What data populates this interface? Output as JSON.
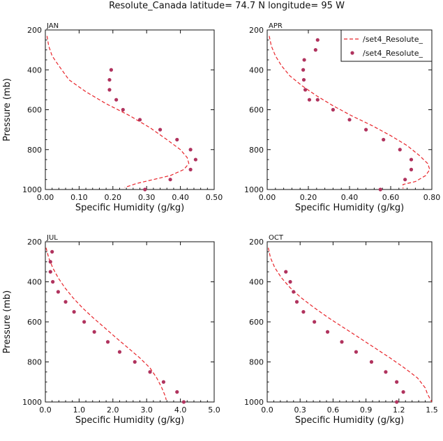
{
  "title": "Resolute_Canada  latitude= 74.7 N longitude= 95 W",
  "colors": {
    "model": "#e8242a",
    "obs": "#b0335e",
    "axis": "#111111"
  },
  "legend": {
    "model_label": "/set4_Resolute_",
    "obs_label": "/set4_Resolute_"
  },
  "chart_data": [
    {
      "type": "line",
      "panel": "JAN",
      "xlabel": "Specific Humidity (g/kg)",
      "ylabel": "Pressure (mb)",
      "xlim": [
        0,
        0.5
      ],
      "ylim": [
        1000,
        200
      ],
      "x_ticks": [
        "0.00",
        "0.10",
        "0.20",
        "0.30",
        "0.40",
        "0.50"
      ],
      "y_ticks": [
        "200",
        "400",
        "600",
        "800",
        "1000"
      ],
      "series": [
        {
          "name": "model",
          "style": "dashed-line",
          "points": [
            [
              0.005,
              230
            ],
            [
              0.01,
              280
            ],
            [
              0.02,
              330
            ],
            [
              0.04,
              380
            ],
            [
              0.07,
              450
            ],
            [
              0.12,
              510
            ],
            [
              0.18,
              570
            ],
            [
              0.25,
              630
            ],
            [
              0.31,
              690
            ],
            [
              0.36,
              750
            ],
            [
              0.4,
              800
            ],
            [
              0.42,
              840
            ],
            [
              0.425,
              870
            ],
            [
              0.41,
              900
            ],
            [
              0.37,
              930
            ],
            [
              0.32,
              950
            ],
            [
              0.27,
              970
            ],
            [
              0.235,
              990
            ]
          ]
        },
        {
          "name": "obs",
          "style": "dots",
          "points": [
            [
              0.195,
              400
            ],
            [
              0.19,
              450
            ],
            [
              0.19,
              500
            ],
            [
              0.21,
              550
            ],
            [
              0.23,
              600
            ],
            [
              0.28,
              650
            ],
            [
              0.34,
              700
            ],
            [
              0.39,
              750
            ],
            [
              0.43,
              800
            ],
            [
              0.445,
              850
            ],
            [
              0.43,
              900
            ],
            [
              0.37,
              950
            ],
            [
              0.295,
              1000
            ]
          ]
        }
      ]
    },
    {
      "type": "line",
      "panel": "APR",
      "xlabel": "Specific Humidity (g/kg)",
      "ylabel": "",
      "xlim": [
        0,
        0.8
      ],
      "ylim": [
        1000,
        200
      ],
      "x_ticks": [
        "0.00",
        "0.20",
        "0.40",
        "0.60",
        "0.80"
      ],
      "y_ticks": [
        "200",
        "400",
        "600",
        "800",
        "1000"
      ],
      "series": [
        {
          "name": "model",
          "style": "dashed-line",
          "points": [
            [
              0.01,
              230
            ],
            [
              0.02,
              280
            ],
            [
              0.04,
              330
            ],
            [
              0.07,
              380
            ],
            [
              0.11,
              430
            ],
            [
              0.17,
              480
            ],
            [
              0.24,
              530
            ],
            [
              0.32,
              580
            ],
            [
              0.41,
              630
            ],
            [
              0.51,
              680
            ],
            [
              0.6,
              730
            ],
            [
              0.68,
              780
            ],
            [
              0.74,
              830
            ],
            [
              0.78,
              870
            ],
            [
              0.79,
              900
            ],
            [
              0.77,
              930
            ],
            [
              0.72,
              960
            ],
            [
              0.66,
              975
            ],
            [
              0.66,
              995
            ]
          ]
        },
        {
          "name": "obs",
          "style": "dots",
          "points": [
            [
              0.245,
              250
            ],
            [
              0.235,
              300
            ],
            [
              0.18,
              350
            ],
            [
              0.175,
              400
            ],
            [
              0.178,
              450
            ],
            [
              0.185,
              500
            ],
            [
              0.205,
              550
            ],
            [
              0.245,
              550
            ],
            [
              0.32,
              600
            ],
            [
              0.4,
              650
            ],
            [
              0.48,
              700
            ],
            [
              0.565,
              750
            ],
            [
              0.645,
              800
            ],
            [
              0.7,
              850
            ],
            [
              0.7,
              900
            ],
            [
              0.67,
              950
            ],
            [
              0.55,
              1000
            ]
          ]
        }
      ]
    },
    {
      "type": "line",
      "panel": "JUL",
      "xlabel": "Specific Humidity (g/kg)",
      "ylabel": "Pressure (mb)",
      "xlim": [
        0,
        5
      ],
      "ylim": [
        1000,
        200
      ],
      "x_ticks": [
        "0.0",
        "1.0",
        "2.0",
        "3.0",
        "4.0",
        "5.0"
      ],
      "y_ticks": [
        "200",
        "400",
        "600",
        "800",
        "1000"
      ],
      "series": [
        {
          "name": "model",
          "style": "dashed-line",
          "points": [
            [
              0.02,
              230
            ],
            [
              0.1,
              280
            ],
            [
              0.22,
              330
            ],
            [
              0.38,
              380
            ],
            [
              0.58,
              430
            ],
            [
              0.82,
              480
            ],
            [
              1.1,
              530
            ],
            [
              1.42,
              580
            ],
            [
              1.76,
              630
            ],
            [
              2.1,
              680
            ],
            [
              2.45,
              730
            ],
            [
              2.8,
              780
            ],
            [
              3.1,
              830
            ],
            [
              3.3,
              880
            ],
            [
              3.45,
              930
            ],
            [
              3.55,
              970
            ],
            [
              3.58,
              990
            ]
          ]
        },
        {
          "name": "obs",
          "style": "dots",
          "points": [
            [
              0.2,
              250
            ],
            [
              0.15,
              300
            ],
            [
              0.15,
              350
            ],
            [
              0.22,
              400
            ],
            [
              0.38,
              450
            ],
            [
              0.6,
              500
            ],
            [
              0.85,
              550
            ],
            [
              1.15,
              600
            ],
            [
              1.45,
              650
            ],
            [
              1.85,
              700
            ],
            [
              2.2,
              750
            ],
            [
              2.65,
              800
            ],
            [
              3.1,
              850
            ],
            [
              3.5,
              900
            ],
            [
              3.9,
              950
            ],
            [
              4.1,
              1000
            ]
          ]
        }
      ]
    },
    {
      "type": "line",
      "panel": "OCT",
      "xlabel": "Specific Humidity (g/kg)",
      "ylabel": "",
      "xlim": [
        0,
        1.5
      ],
      "ylim": [
        1000,
        200
      ],
      "x_ticks": [
        "0.0",
        "0.3",
        "0.6",
        "0.9",
        "1.2",
        "1.5"
      ],
      "y_ticks": [
        "200",
        "400",
        "600",
        "800",
        "1000"
      ],
      "series": [
        {
          "name": "model",
          "style": "dashed-line",
          "points": [
            [
              0.01,
              230
            ],
            [
              0.03,
              280
            ],
            [
              0.07,
              330
            ],
            [
              0.13,
              380
            ],
            [
              0.21,
              430
            ],
            [
              0.31,
              480
            ],
            [
              0.43,
              530
            ],
            [
              0.56,
              580
            ],
            [
              0.7,
              630
            ],
            [
              0.84,
              680
            ],
            [
              0.98,
              730
            ],
            [
              1.12,
              780
            ],
            [
              1.25,
              830
            ],
            [
              1.37,
              880
            ],
            [
              1.44,
              930
            ],
            [
              1.46,
              960
            ],
            [
              1.5,
              1000
            ]
          ]
        },
        {
          "name": "obs",
          "style": "dots",
          "points": [
            [
              0.17,
              350
            ],
            [
              0.21,
              400
            ],
            [
              0.24,
              450
            ],
            [
              0.27,
              500
            ],
            [
              0.33,
              550
            ],
            [
              0.43,
              600
            ],
            [
              0.55,
              650
            ],
            [
              0.68,
              700
            ],
            [
              0.81,
              750
            ],
            [
              0.95,
              800
            ],
            [
              1.08,
              850
            ],
            [
              1.18,
              900
            ],
            [
              1.24,
              950
            ],
            [
              1.18,
              1000
            ]
          ]
        }
      ]
    }
  ]
}
